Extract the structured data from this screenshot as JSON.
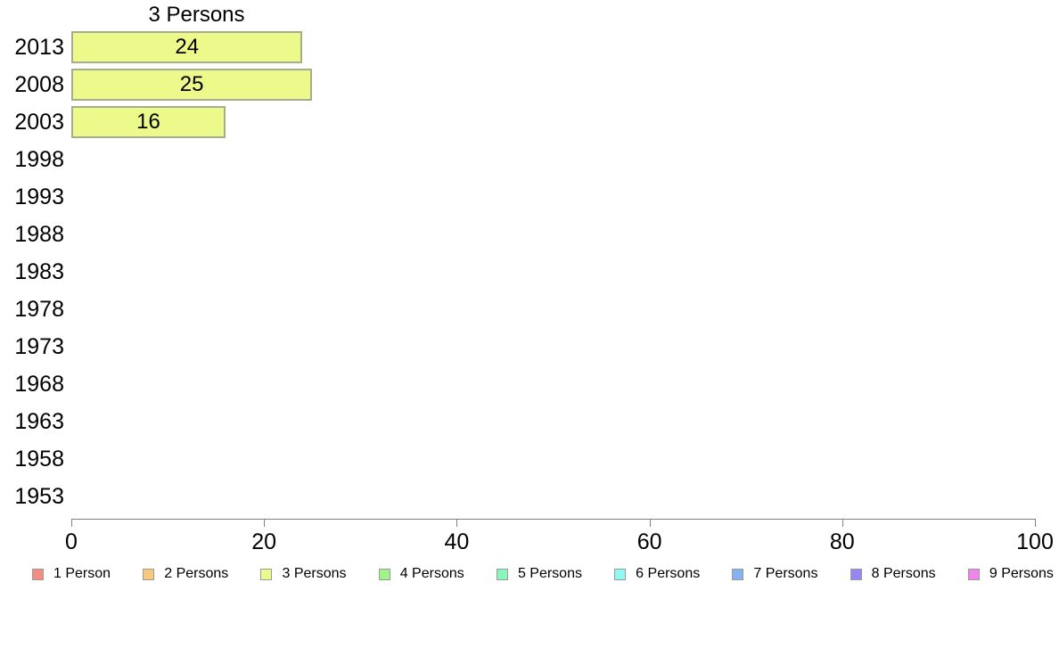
{
  "chart_data": {
    "type": "bar",
    "orientation": "horizontal",
    "title": "3 Persons",
    "categories": [
      "2013",
      "2008",
      "2003",
      "1998",
      "1993",
      "1988",
      "1983",
      "1978",
      "1973",
      "1968",
      "1963",
      "1958",
      "1953"
    ],
    "values": [
      24,
      25,
      16,
      null,
      null,
      null,
      null,
      null,
      null,
      null,
      null,
      null,
      null
    ],
    "xlabel": "",
    "ylabel": "",
    "xlim": [
      0,
      100
    ],
    "x_ticks": [
      0,
      20,
      40,
      60,
      80,
      100
    ],
    "grid": false,
    "bar_color": "#EBFA8B",
    "bar_border_color": "#A7AC8C",
    "axis_color": "#808080",
    "legend_position": "bottom",
    "legend": [
      {
        "label": "1 Person",
        "color": "#F48C84"
      },
      {
        "label": "2 Persons",
        "color": "#F7C87E"
      },
      {
        "label": "3 Persons",
        "color": "#EBFA8B"
      },
      {
        "label": "4 Persons",
        "color": "#9EF585"
      },
      {
        "label": "5 Persons",
        "color": "#89F6BB"
      },
      {
        "label": "6 Persons",
        "color": "#8DF9F2"
      },
      {
        "label": "7 Persons",
        "color": "#87B1F5"
      },
      {
        "label": "8 Persons",
        "color": "#9487F3"
      },
      {
        "label": "9 Persons",
        "color": "#F083EC"
      }
    ]
  }
}
